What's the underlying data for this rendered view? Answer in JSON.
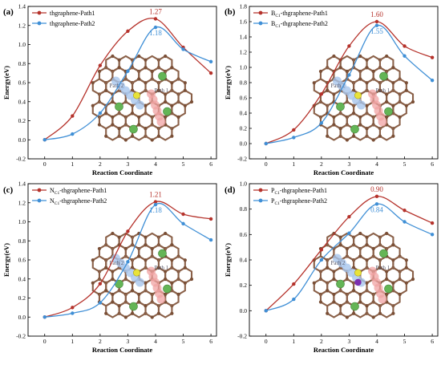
{
  "colors": {
    "path1": "#b5322b",
    "path2": "#3f8fd6",
    "carbon": "#7a4f36",
    "bond": "#8a6048",
    "cl": "#64b556",
    "sulfur": "#e8e23a",
    "phosphorus": "#7b2fb0",
    "path1_trail": "#f0a3a3",
    "path2_trail": "#a7c6ec"
  },
  "chart_data": [
    {
      "type": "line",
      "panel": "(a)",
      "xlabel": "Reaction Coordinate",
      "ylabel": "Energy(eV)",
      "xlim": [
        -0.6,
        6.2
      ],
      "ylim": [
        -0.2,
        1.4
      ],
      "xticks": [
        "0",
        "1",
        "2",
        "3",
        "4",
        "5",
        "6"
      ],
      "yticks": [
        "-0.2",
        "0.0",
        "0.2",
        "0.4",
        "0.6",
        "0.8",
        "1.0",
        "1.2",
        "1.4"
      ],
      "legend_position": "top-left",
      "series": [
        {
          "name": "thgraphene-Path1",
          "name_base": "thgraphene-Path1",
          "name_sub": "",
          "name_rest": "",
          "x": [
            0,
            1,
            2,
            3,
            4,
            5,
            6
          ],
          "values": [
            0.0,
            0.25,
            0.78,
            1.14,
            1.27,
            0.97,
            0.7
          ],
          "peak_label": "1.27"
        },
        {
          "name": "thgraphene-Path2",
          "name_base": "thgraphene-Path2",
          "name_sub": "",
          "name_rest": "",
          "x": [
            0,
            1,
            2,
            3,
            4,
            5,
            6
          ],
          "values": [
            0.0,
            0.06,
            0.28,
            0.72,
            1.18,
            0.95,
            0.82
          ],
          "peak_label": "1.18"
        }
      ],
      "inset": {
        "path1_label": "Path 1",
        "path2_label": "Path 2",
        "dopant": "none"
      }
    },
    {
      "type": "line",
      "panel": "(b)",
      "xlabel": "Reaction Coordinate",
      "ylabel": "Energy(eV)",
      "xlim": [
        -0.6,
        6.2
      ],
      "ylim": [
        -0.2,
        1.8
      ],
      "xticks": [
        "0",
        "1",
        "2",
        "3",
        "4",
        "5",
        "6"
      ],
      "yticks": [
        "-0.2",
        "0.0",
        "0.2",
        "0.4",
        "0.6",
        "0.8",
        "1.0",
        "1.2",
        "1.4",
        "1.6",
        "1.8"
      ],
      "legend_position": "top-left",
      "series": [
        {
          "name": "BC1-thgraphene-Path1",
          "name_base": "B",
          "name_sub": "C1",
          "name_rest": "-thgraphene-Path1",
          "x": [
            0,
            1,
            2,
            3,
            4,
            5,
            6
          ],
          "values": [
            0.0,
            0.18,
            0.65,
            1.28,
            1.6,
            1.28,
            1.13
          ],
          "peak_label": "1.60"
        },
        {
          "name": "BC1-thgraphene-Path2",
          "name_base": "B",
          "name_sub": "C1",
          "name_rest": "-thgraphene-Path2",
          "x": [
            0,
            1,
            2,
            3,
            4,
            5,
            6
          ],
          "values": [
            0.0,
            0.08,
            0.27,
            0.9,
            1.55,
            1.15,
            0.83
          ],
          "peak_label": "1.55"
        }
      ],
      "inset": {
        "path1_label": "Path 1",
        "path2_label": "Path 2",
        "dopant": "boron"
      }
    },
    {
      "type": "line",
      "panel": "(c)",
      "xlabel": "Reaction Coordinate",
      "ylabel": "Energy(eV)",
      "xlim": [
        -0.6,
        6.2
      ],
      "ylim": [
        -0.2,
        1.4
      ],
      "xticks": [
        "0",
        "1",
        "2",
        "3",
        "4",
        "5",
        "6"
      ],
      "yticks": [
        "-0.2",
        "0.0",
        "0.2",
        "0.4",
        "0.6",
        "0.8",
        "1.0",
        "1.2",
        "1.4"
      ],
      "legend_position": "top-left",
      "series": [
        {
          "name": "NC1-thgraphene-Path1",
          "name_base": "N",
          "name_sub": "C1",
          "name_rest": "-thgraphene-Path1",
          "x": [
            0,
            1,
            2,
            3,
            4,
            5,
            6
          ],
          "values": [
            0.0,
            0.1,
            0.35,
            0.9,
            1.21,
            1.08,
            1.03
          ],
          "peak_label": "1.21"
        },
        {
          "name": "NC1-thgraphene-Path2",
          "name_base": "N",
          "name_sub": "C1",
          "name_rest": "-thgraphene-Path2",
          "x": [
            0,
            1,
            2,
            3,
            4,
            5,
            6
          ],
          "values": [
            0.0,
            0.04,
            0.15,
            0.58,
            1.18,
            0.98,
            0.81
          ],
          "peak_label": "1.18"
        }
      ],
      "inset": {
        "path1_label": "Path 1",
        "path2_label": "Path 2",
        "dopant": "nitrogen"
      }
    },
    {
      "type": "line",
      "panel": "(d)",
      "xlabel": "Reaction Coordinate",
      "ylabel": "Energy(eV)",
      "xlim": [
        -0.6,
        6.2
      ],
      "ylim": [
        -0.2,
        1.0
      ],
      "xticks": [
        "0",
        "1",
        "2",
        "3",
        "4",
        "5",
        "6"
      ],
      "yticks": [
        "-0.2",
        "0.0",
        "0.2",
        "0.4",
        "0.6",
        "0.8",
        "1.0"
      ],
      "legend_position": "top-left",
      "series": [
        {
          "name": "PC1-thgraphene-Path1",
          "name_base": "P",
          "name_sub": "C1",
          "name_rest": "-thgraphene-Path1",
          "x": [
            0,
            1,
            2,
            3,
            4,
            5,
            6
          ],
          "values": [
            0.0,
            0.21,
            0.48,
            0.74,
            0.9,
            0.79,
            0.69
          ],
          "peak_label": "0.90"
        },
        {
          "name": "PC1-thgraphene-Path2",
          "name_base": "P",
          "name_sub": "C1",
          "name_rest": "-thgraphene-Path2",
          "x": [
            0,
            1,
            2,
            3,
            4,
            5,
            6
          ],
          "values": [
            0.0,
            0.09,
            0.4,
            0.61,
            0.84,
            0.7,
            0.6
          ],
          "peak_label": "0.84"
        }
      ],
      "inset": {
        "path1_label": "Path 1",
        "path2_label": "Path 2",
        "dopant": "phosphorus"
      }
    }
  ]
}
